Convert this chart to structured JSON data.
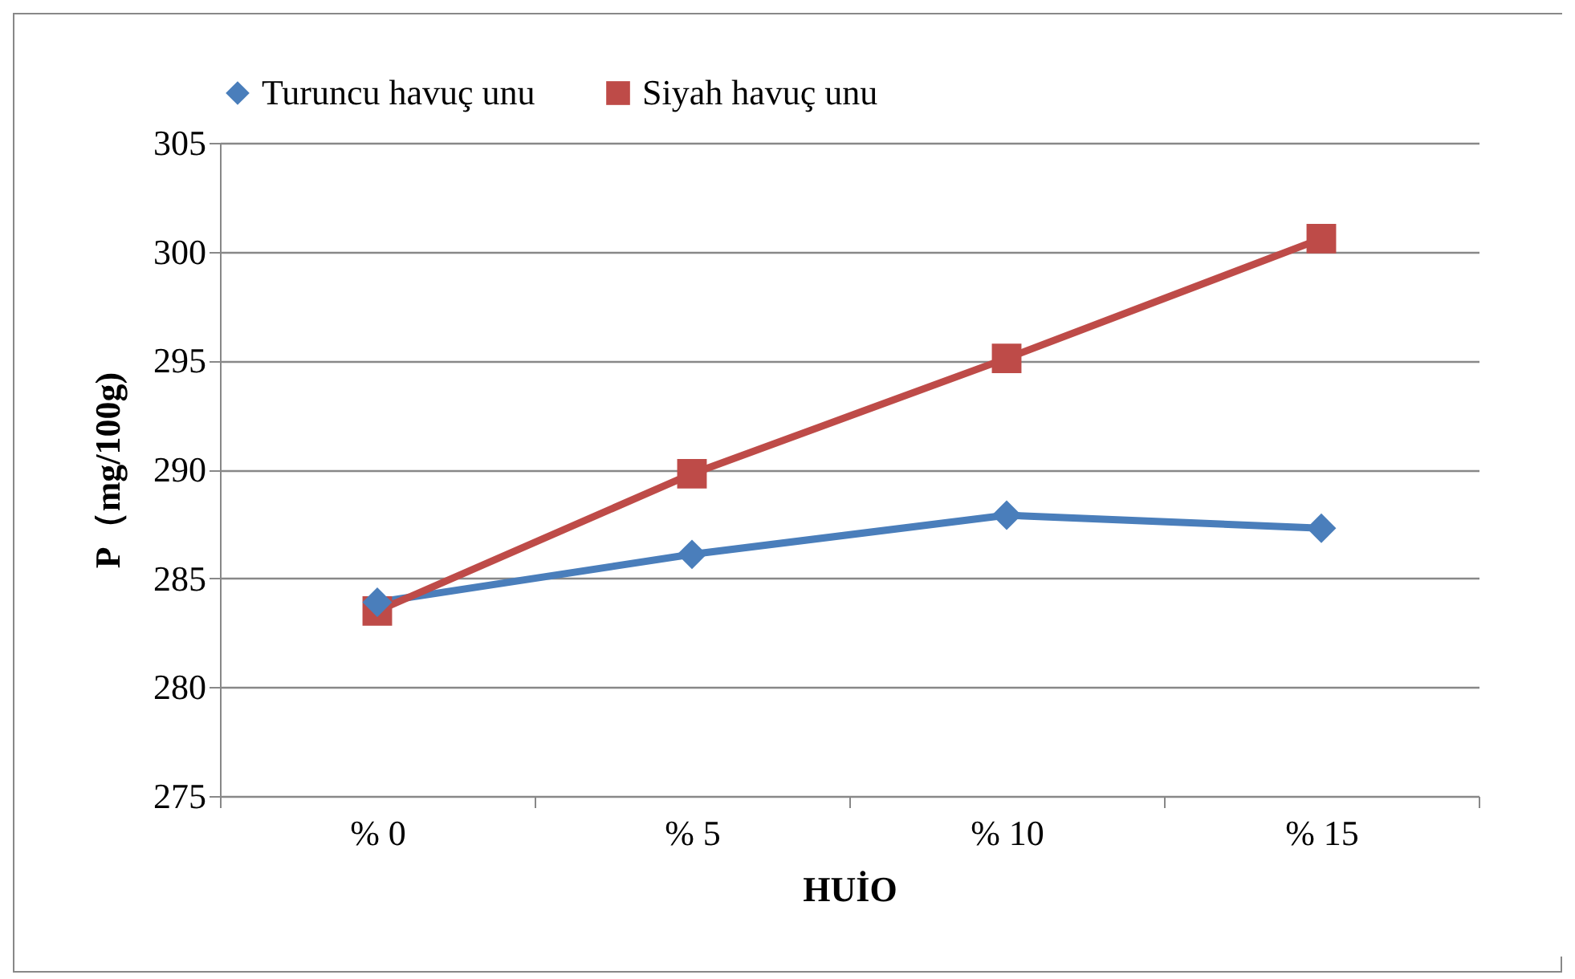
{
  "chart_data": {
    "type": "line",
    "xlabel": "HUİO",
    "ylabel": "P（mg/100g)",
    "categories": [
      "% 0",
      "% 5",
      "% 10",
      "% 15"
    ],
    "series": [
      {
        "name": "Turuncu havuç unu",
        "color": "#4a7ebb",
        "marker": "diamond",
        "values": [
          283.9,
          286.1,
          287.9,
          287.3
        ]
      },
      {
        "name": "Siyah havuç unu",
        "color": "#be4b48",
        "marker": "square",
        "values": [
          283.5,
          289.8,
          295.1,
          300.6
        ]
      }
    ],
    "ylim": [
      275,
      305
    ],
    "yticks": [
      275,
      280,
      285,
      290,
      295,
      300,
      305
    ],
    "grid": "y",
    "legend": "top",
    "line_style": "solid"
  }
}
